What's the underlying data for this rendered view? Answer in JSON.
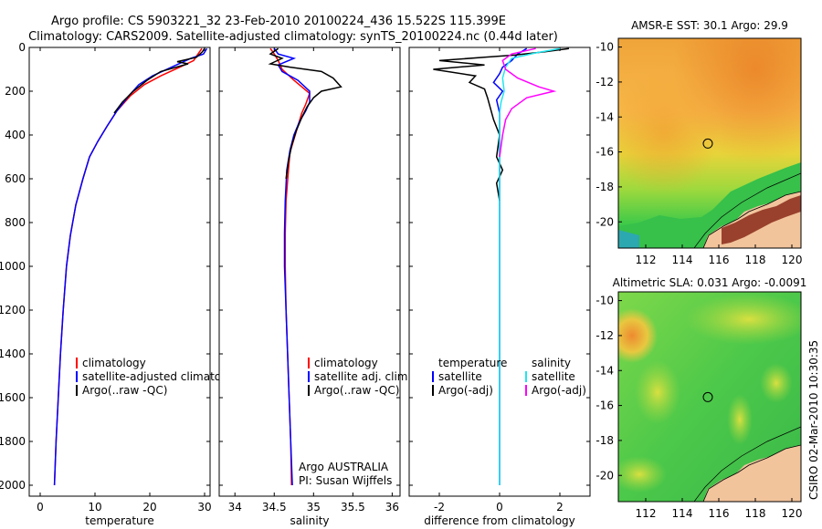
{
  "header": {
    "line1": "Argo profile: CS 5903221_32 23-Feb-2010 20100224_436 15.522S 115.399E",
    "line2": "Climatology: CARS2009. Satellite-adjusted climatology: synTS_20100224.nc (0.44d later)"
  },
  "side_label": "CSIRO 02-Mar-2010 10:30:35",
  "colors": {
    "red": "#ff0000",
    "blue": "#0000ff",
    "black": "#000000",
    "cyan": "#22e5ee",
    "magenta": "#ff00ff"
  },
  "chart_data": [
    {
      "id": "temperature",
      "type": "line",
      "xlabel": "temperature",
      "ylabel": "",
      "xlim": [
        -2,
        31
      ],
      "ylim": [
        0,
        2050
      ],
      "y_inverted": true,
      "xticks": [
        0,
        10,
        20,
        30
      ],
      "yticks": [
        0,
        200,
        400,
        600,
        800,
        1000,
        1200,
        1400,
        1600,
        1800,
        2000
      ],
      "legend": {
        "position": "bottom-center",
        "entries": [
          {
            "label": "climatology",
            "color": "red"
          },
          {
            "label": "satellite-adjusted climatology",
            "color": "blue"
          },
          {
            "label": "Argo(..raw -QC)",
            "color": "black"
          }
        ]
      },
      "series": [
        {
          "name": "climatology",
          "color": "red",
          "points": [
            [
              29.5,
              5
            ],
            [
              28.8,
              30
            ],
            [
              28,
              60
            ],
            [
              25.5,
              90
            ],
            [
              22,
              130
            ],
            [
              19,
              170
            ],
            [
              16.5,
              220
            ],
            [
              14,
              290
            ],
            [
              12.2,
              360
            ],
            [
              10.5,
              430
            ],
            [
              9,
              500
            ],
            [
              7.8,
              600
            ],
            [
              6.5,
              720
            ],
            [
              5.5,
              860
            ],
            [
              4.8,
              1000
            ],
            [
              4.2,
              1200
            ],
            [
              3.7,
              1400
            ],
            [
              3.3,
              1600
            ],
            [
              2.9,
              1800
            ],
            [
              2.6,
              2000
            ]
          ]
        },
        {
          "name": "satellite-adjusted climatology",
          "color": "blue",
          "points": [
            [
              30.4,
              5
            ],
            [
              29.8,
              30
            ],
            [
              27.5,
              50
            ],
            [
              24,
              90
            ],
            [
              20.5,
              130
            ],
            [
              18,
              170
            ],
            [
              16.2,
              220
            ],
            [
              14,
              290
            ],
            [
              12.2,
              360
            ],
            [
              10.5,
              430
            ],
            [
              9,
              500
            ],
            [
              7.8,
              600
            ],
            [
              6.5,
              720
            ],
            [
              5.5,
              860
            ],
            [
              4.8,
              1000
            ],
            [
              4.2,
              1200
            ],
            [
              3.7,
              1400
            ],
            [
              3.3,
              1600
            ],
            [
              2.9,
              1800
            ],
            [
              2.6,
              2000
            ]
          ]
        },
        {
          "name": "Argo",
          "color": "black",
          "points": [
            [
              30,
              5
            ],
            [
              29.6,
              20
            ],
            [
              28.5,
              45
            ],
            [
              25,
              65
            ],
            [
              27,
              75
            ],
            [
              22,
              110
            ],
            [
              19.5,
              150
            ],
            [
              17,
              200
            ],
            [
              15,
              250
            ],
            [
              13.5,
              300
            ]
          ]
        }
      ]
    },
    {
      "id": "salinity",
      "type": "line",
      "xlabel": "salinity",
      "ylabel": "",
      "xlim": [
        33.8,
        36.1
      ],
      "ylim": [
        0,
        2050
      ],
      "y_inverted": true,
      "xticks": [
        34,
        34.5,
        35,
        35.5,
        36
      ],
      "yticks": [
        0,
        200,
        400,
        600,
        800,
        1000,
        1200,
        1400,
        1600,
        1800,
        2000
      ],
      "legend": {
        "position": "bottom-right",
        "entries": [
          {
            "label": "climatology",
            "color": "red"
          },
          {
            "label": "satellite adj. clim.",
            "color": "blue"
          },
          {
            "label": "Argo(..raw -QC)",
            "color": "black"
          }
        ]
      },
      "annotations": [
        "Argo AUSTRALIA",
        "PI: Susan Wijffels"
      ],
      "series": [
        {
          "name": "climatology",
          "color": "red",
          "points": [
            [
              34.45,
              5
            ],
            [
              34.5,
              30
            ],
            [
              34.55,
              60
            ],
            [
              34.6,
              100
            ],
            [
              34.75,
              150
            ],
            [
              34.95,
              210
            ],
            [
              34.9,
              260
            ],
            [
              34.85,
              300
            ],
            [
              34.8,
              360
            ],
            [
              34.75,
              420
            ],
            [
              34.7,
              480
            ],
            [
              34.68,
              560
            ],
            [
              34.65,
              700
            ],
            [
              34.64,
              850
            ],
            [
              34.64,
              1000
            ],
            [
              34.65,
              1200
            ],
            [
              34.67,
              1400
            ],
            [
              34.69,
              1600
            ],
            [
              34.71,
              1800
            ],
            [
              34.72,
              2000
            ]
          ]
        },
        {
          "name": "satellite adj. clim.",
          "color": "blue",
          "points": [
            [
              34.5,
              5
            ],
            [
              34.55,
              30
            ],
            [
              34.75,
              50
            ],
            [
              34.55,
              80
            ],
            [
              34.6,
              110
            ],
            [
              34.8,
              150
            ],
            [
              34.95,
              200
            ],
            [
              34.95,
              250
            ],
            [
              34.9,
              290
            ],
            [
              34.82,
              340
            ],
            [
              34.75,
              400
            ],
            [
              34.7,
              470
            ],
            [
              34.66,
              560
            ],
            [
              34.64,
              700
            ],
            [
              34.63,
              850
            ],
            [
              34.63,
              1000
            ],
            [
              34.65,
              1200
            ],
            [
              34.67,
              1400
            ],
            [
              34.69,
              1600
            ],
            [
              34.71,
              1800
            ],
            [
              34.73,
              2000
            ]
          ]
        },
        {
          "name": "Argo",
          "color": "black",
          "points": [
            [
              34.55,
              5
            ],
            [
              34.45,
              30
            ],
            [
              34.6,
              50
            ],
            [
              34.45,
              75
            ],
            [
              34.7,
              90
            ],
            [
              34.9,
              100
            ],
            [
              35.1,
              110
            ],
            [
              35.25,
              140
            ],
            [
              35.35,
              180
            ],
            [
              35.1,
              200
            ],
            [
              35,
              230
            ],
            [
              34.92,
              270
            ],
            [
              34.85,
              320
            ],
            [
              34.78,
              380
            ],
            [
              34.72,
              450
            ],
            [
              34.68,
              520
            ],
            [
              34.65,
              600
            ]
          ]
        }
      ]
    },
    {
      "id": "difference",
      "type": "line",
      "xlabel": "difference from climatology",
      "ylabel": "",
      "xlim": [
        -3,
        3
      ],
      "ylim": [
        0,
        2050
      ],
      "y_inverted": true,
      "xticks": [
        -2,
        0,
        2
      ],
      "yticks": [
        0,
        200,
        400,
        600,
        800,
        1000,
        1200,
        1400,
        1600,
        1800,
        2000
      ],
      "legend": {
        "position": "bottom",
        "entries": [
          {
            "label": "temperature",
            "color": ""
          },
          {
            "label": "satellite",
            "color": "blue"
          },
          {
            "label": "Argo(-adj)",
            "color": "black"
          },
          {
            "label": "salinity",
            "color": ""
          },
          {
            "label": "satellite",
            "color": "cyan"
          },
          {
            "label": "Argo(-adj)",
            "color": "magenta"
          }
        ]
      },
      "series": [
        {
          "name": "temperature satellite",
          "color": "blue",
          "points": [
            [
              0.9,
              5
            ],
            [
              0.6,
              30
            ],
            [
              0.4,
              60
            ],
            [
              0.1,
              90
            ],
            [
              0,
              120
            ],
            [
              -0.2,
              160
            ],
            [
              0.1,
              200
            ],
            [
              -0.1,
              240
            ],
            [
              0,
              300
            ],
            [
              0,
              400
            ],
            [
              0,
              600
            ],
            [
              0,
              800
            ],
            [
              0,
              1200
            ],
            [
              0,
              1600
            ],
            [
              0,
              2000
            ]
          ]
        },
        {
          "name": "temperature Argo",
          "color": "black",
          "points": [
            [
              2.3,
              5
            ],
            [
              1.5,
              20
            ],
            [
              0.5,
              35
            ],
            [
              -0.5,
              45
            ],
            [
              -2,
              60
            ],
            [
              -0.5,
              80
            ],
            [
              -2.2,
              100
            ],
            [
              -0.8,
              130
            ],
            [
              -1,
              160
            ],
            [
              -0.5,
              190
            ],
            [
              -0.4,
              230
            ],
            [
              -0.3,
              280
            ],
            [
              -0.2,
              330
            ],
            [
              0,
              400
            ],
            [
              -0.1,
              500
            ],
            [
              0.1,
              560
            ],
            [
              -0.1,
              620
            ],
            [
              0,
              700
            ]
          ]
        },
        {
          "name": "salinity satellite",
          "color": "cyan",
          "points": [
            [
              2,
              5
            ],
            [
              1.2,
              25
            ],
            [
              0.4,
              50
            ],
            [
              0.2,
              90
            ],
            [
              0.1,
              140
            ],
            [
              0.15,
              200
            ],
            [
              0.05,
              250
            ],
            [
              0,
              300
            ],
            [
              0,
              400
            ],
            [
              0,
              600
            ],
            [
              0,
              800
            ],
            [
              0,
              1200
            ],
            [
              0,
              1600
            ],
            [
              0,
              2000
            ]
          ]
        },
        {
          "name": "salinity Argo",
          "color": "magenta",
          "points": [
            [
              1.2,
              5
            ],
            [
              0.4,
              30
            ],
            [
              0.1,
              60
            ],
            [
              0.2,
              100
            ],
            [
              0.6,
              140
            ],
            [
              1.3,
              180
            ],
            [
              1.8,
              200
            ],
            [
              0.9,
              230
            ],
            [
              0.4,
              280
            ],
            [
              0.2,
              330
            ],
            [
              0.1,
              400
            ],
            [
              0,
              500
            ]
          ]
        }
      ]
    },
    {
      "id": "sst_map",
      "type": "heatmap",
      "title": "AMSR-E SST: 30.1  Argo: 29.9",
      "xlim": [
        110.5,
        120.5
      ],
      "ylim": [
        -21.5,
        -9.5
      ],
      "xticks": [
        112,
        114,
        116,
        118,
        120
      ],
      "yticks": [
        -10,
        -12,
        -14,
        -16,
        -18,
        -20
      ],
      "marker": {
        "lon": 115.4,
        "lat": -15.52
      }
    },
    {
      "id": "sla_map",
      "type": "heatmap",
      "title": "Altimetric SLA: 0.031  Argo: -0.0091",
      "xlim": [
        110.5,
        120.5
      ],
      "ylim": [
        -21.5,
        -9.5
      ],
      "xticks": [
        112,
        114,
        116,
        118,
        120
      ],
      "yticks": [
        -10,
        -12,
        -14,
        -16,
        -18,
        -20
      ],
      "marker": {
        "lon": 115.4,
        "lat": -15.52
      }
    }
  ]
}
